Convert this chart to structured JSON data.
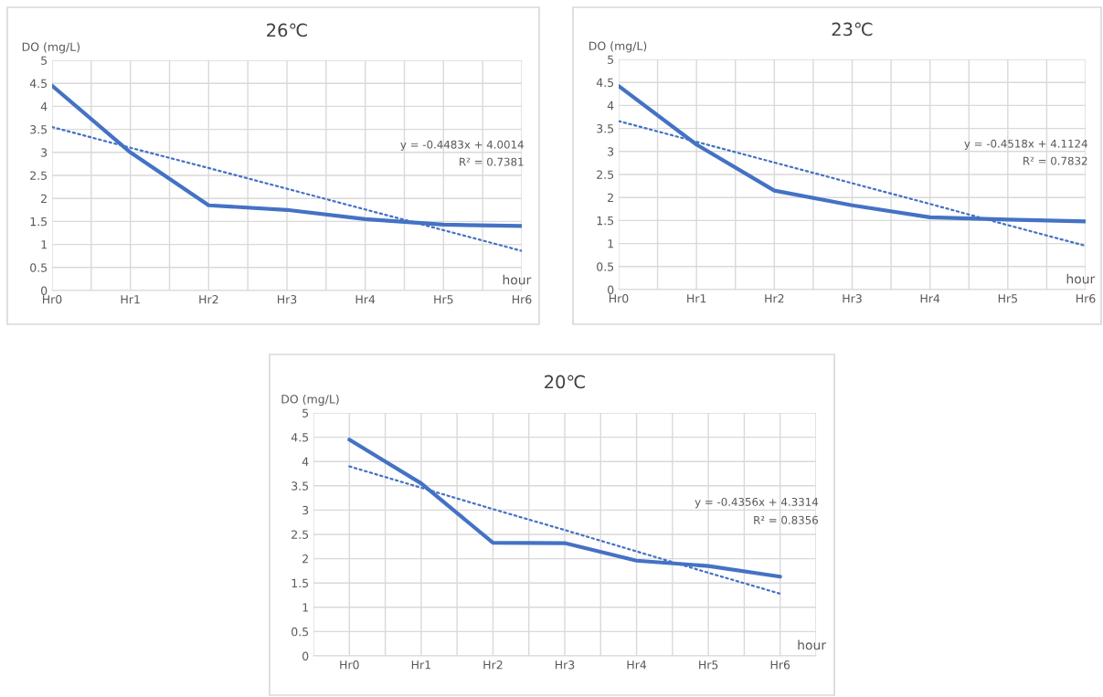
{
  "chart_data": [
    {
      "type": "line",
      "title": "26℃",
      "xlabel": "hour",
      "ylabel": "DO (mg/L)",
      "categories": [
        "Hr0",
        "Hr1",
        "Hr2",
        "Hr3",
        "Hr4",
        "Hr5",
        "Hr6"
      ],
      "ylim": [
        0,
        5
      ],
      "yticks": [
        0,
        0.5,
        1,
        1.5,
        2,
        2.5,
        3,
        3.5,
        4,
        4.5,
        5
      ],
      "grid": true,
      "series": [
        {
          "color": "#4472c4",
          "line_style": "solid",
          "values": [
            4.45,
            3.0,
            1.85,
            1.75,
            1.55,
            1.43,
            1.4
          ]
        },
        {
          "color": "#4472c4",
          "line_style": "dotted",
          "values": [
            3.55,
            3.1,
            2.66,
            2.21,
            1.76,
            1.31,
            0.86
          ]
        }
      ],
      "annotations": [
        "y = -0.4483x + 4.0014",
        "R² = 0.7381"
      ]
    },
    {
      "type": "line",
      "title": "23℃",
      "xlabel": "hour",
      "ylabel": "DO (mg/L)",
      "categories": [
        "Hr0",
        "Hr1",
        "Hr2",
        "Hr3",
        "Hr4",
        "Hr5",
        "Hr6"
      ],
      "ylim": [
        0,
        5
      ],
      "yticks": [
        0,
        0.5,
        1,
        1.5,
        2,
        2.5,
        3,
        3.5,
        4,
        4.5,
        5
      ],
      "grid": true,
      "series": [
        {
          "color": "#4472c4",
          "line_style": "solid",
          "values": [
            4.42,
            3.15,
            2.15,
            1.83,
            1.57,
            1.52,
            1.48
          ]
        },
        {
          "color": "#4472c4",
          "line_style": "dotted",
          "values": [
            3.66,
            3.21,
            2.76,
            2.31,
            1.86,
            1.4,
            0.95
          ]
        }
      ],
      "annotations": [
        "y = -0.4518x + 4.1124",
        "R² = 0.7832"
      ]
    },
    {
      "type": "line",
      "title": "20℃",
      "xlabel": "hour",
      "ylabel": "DO (mg/L)",
      "categories": [
        "Hr0",
        "Hr1",
        "Hr2",
        "Hr3",
        "Hr4",
        "Hr5",
        "Hr6"
      ],
      "ylim": [
        0,
        5
      ],
      "yticks": [
        0,
        0.5,
        1,
        1.5,
        2,
        2.5,
        3,
        3.5,
        4,
        4.5,
        5
      ],
      "grid": true,
      "series": [
        {
          "color": "#4472c4",
          "line_style": "solid",
          "values": [
            4.45,
            3.55,
            2.33,
            2.32,
            1.96,
            1.85,
            1.63
          ]
        },
        {
          "color": "#4472c4",
          "line_style": "dotted",
          "values": [
            3.9,
            3.46,
            3.02,
            2.59,
            2.15,
            1.71,
            1.28
          ]
        }
      ],
      "annotations": [
        "y = -0.4356x + 4.3314",
        "R² = 0.8356"
      ]
    }
  ]
}
